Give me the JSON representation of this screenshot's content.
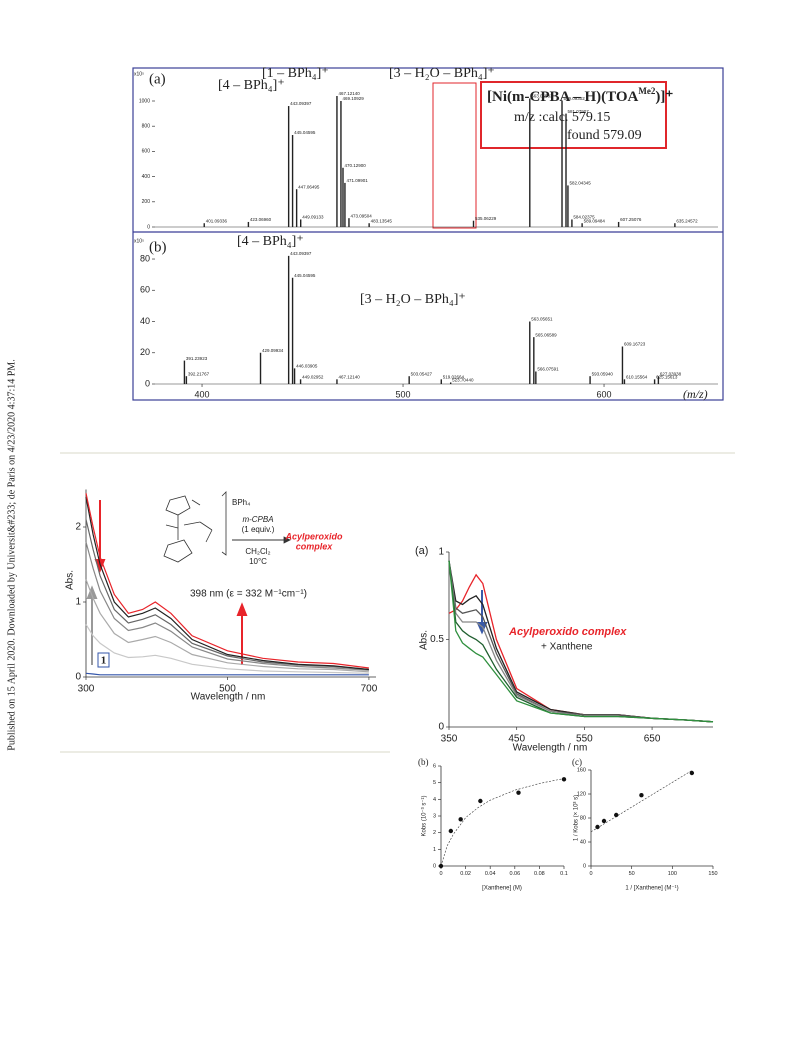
{
  "sidebar": "Published on 15 April 2020. Downloaded by Universit&#233; de Paris on 4/23/2020 4:37:14 PM.",
  "ms": {
    "panel_a": {
      "type": "spectrum",
      "label": "(a)",
      "scale": "x10⁵",
      "xlim": [
        376.6,
        656.7
      ],
      "ylim": [
        0,
        1200
      ],
      "yticks": [
        0,
        200,
        400,
        600,
        800,
        1000
      ],
      "peaks": [
        {
          "mz": 401.09336,
          "intensity": 30,
          "label": "401.09336"
        },
        {
          "mz": 423.0696,
          "intensity": 40,
          "label": "423.06960"
        },
        {
          "mz": 443.09397,
          "intensity": 960,
          "label": "443.09397"
        },
        {
          "mz": 445.04595,
          "intensity": 730,
          "label": "445.04595"
        },
        {
          "mz": 447.06495,
          "intensity": 300,
          "label": "447.06495"
        },
        {
          "mz": 449.09133,
          "intensity": 60,
          "label": "449.09133"
        },
        {
          "mz": 467.1214,
          "intensity": 1040,
          "label": "467.12140"
        },
        {
          "mz": 469.10929,
          "intensity": 1000,
          "label": "469.10929"
        },
        {
          "mz": 470.129,
          "intensity": 470,
          "label": "470.12900"
        },
        {
          "mz": 471.09901,
          "intensity": 350,
          "label": "471.09901"
        },
        {
          "mz": 473.09504,
          "intensity": 70,
          "label": "473.09504"
        },
        {
          "mz": 483.13545,
          "intensity": 30,
          "label": "483.13545"
        },
        {
          "mz": 535.06229,
          "intensity": 50,
          "label": "535.06229"
        },
        {
          "mz": 563.06583,
          "intensity": 1020,
          "label": "563.06583"
        },
        {
          "mz": 579.09302,
          "intensity": 1000,
          "label": "579.09302"
        },
        {
          "mz": 581.07907,
          "intensity": 900,
          "label": "581.07907"
        },
        {
          "mz": 582.04345,
          "intensity": 330,
          "label": "582.04345"
        },
        {
          "mz": 584.02375,
          "intensity": 60,
          "label": "584.02375"
        },
        {
          "mz": 589.09484,
          "intensity": 30,
          "label": "589.09484"
        },
        {
          "mz": 607.25076,
          "intensity": 40,
          "label": "607.25076"
        },
        {
          "mz": 635.24572,
          "intensity": 30,
          "label": "635.24572"
        }
      ],
      "annotations": [
        "[4 – BPh₄]⁺",
        "[1 – BPh₄]⁺",
        "[3 – H₂O – BPh₄]⁺"
      ],
      "box": {
        "formula": "[Ni(m-CPBA – H)(TOA",
        "formula_sup": "Me2",
        "formula_end": ")]⁺",
        "calc": "m/z :calc.   579.15",
        "found": "found 579.09"
      }
    },
    "panel_b": {
      "type": "spectrum",
      "label": "(b)",
      "scale": "x10⁵",
      "xlim": [
        376.6,
        656.7
      ],
      "ylim": [
        0,
        90
      ],
      "xticks": [
        400,
        500,
        600
      ],
      "yticks": [
        0,
        20,
        40,
        60,
        80
      ],
      "xlabel": "(m/z)",
      "peaks": [
        {
          "mz": 391.23923,
          "intensity": 15,
          "label": "391.23923"
        },
        {
          "mz": 392.21767,
          "intensity": 5,
          "label": "392.21767"
        },
        {
          "mz": 429.09934,
          "intensity": 20,
          "label": "429.09934"
        },
        {
          "mz": 443.09397,
          "intensity": 82,
          "label": "443.09397"
        },
        {
          "mz": 445.04595,
          "intensity": 68,
          "label": "445.04595"
        },
        {
          "mz": 446.03905,
          "intensity": 10,
          "label": "446.03905"
        },
        {
          "mz": 449.02952,
          "intensity": 3,
          "label": "449.02952"
        },
        {
          "mz": 467.1214,
          "intensity": 3,
          "label": "467.12140"
        },
        {
          "mz": 503.05427,
          "intensity": 5,
          "label": "503.05427"
        },
        {
          "mz": 519.02664,
          "intensity": 3,
          "label": "519.02664"
        },
        {
          "mz": 523.7044,
          "intensity": 1,
          "label": "523.70440"
        },
        {
          "mz": 563.05651,
          "intensity": 40,
          "label": "563.05651"
        },
        {
          "mz": 565.06589,
          "intensity": 30,
          "label": "565.06589"
        },
        {
          "mz": 566.07591,
          "intensity": 8,
          "label": "566.07591"
        },
        {
          "mz": 593.0594,
          "intensity": 5,
          "label": "593.05940"
        },
        {
          "mz": 609.16723,
          "intensity": 24,
          "label": "609.16723"
        },
        {
          "mz": 610.15564,
          "intensity": 3,
          "label": "610.15564"
        },
        {
          "mz": 625.15613,
          "intensity": 3,
          "label": "625.15613"
        },
        {
          "mz": 627.03938,
          "intensity": 5,
          "label": "627.03938"
        }
      ],
      "annotations": [
        "[4 – BPh₄]⁺",
        "[3 – H₂O – BPh₄]⁺"
      ]
    }
  },
  "uv_left": {
    "type": "line",
    "xlabel": "Wavelength / nm",
    "ylabel": "Abs.",
    "xlim": [
      300,
      710
    ],
    "ylim": [
      0,
      2.5
    ],
    "xticks": [
      300,
      500,
      700
    ],
    "yticks": [
      0,
      1,
      2
    ],
    "x": [
      300,
      310,
      320,
      340,
      360,
      380,
      398,
      420,
      450,
      500,
      550,
      600,
      650,
      700
    ],
    "series": [
      {
        "color": "#c8c8c8",
        "values": [
          0.7,
          0.55,
          0.45,
          0.32,
          0.26,
          0.27,
          0.29,
          0.25,
          0.17,
          0.11,
          0.08,
          0.07,
          0.06,
          0.05
        ]
      },
      {
        "color": "#aaaaaa",
        "values": [
          1.3,
          1.05,
          0.85,
          0.58,
          0.46,
          0.5,
          0.54,
          0.46,
          0.3,
          0.19,
          0.14,
          0.11,
          0.1,
          0.07
        ]
      },
      {
        "color": "#888888",
        "values": [
          1.8,
          1.45,
          1.15,
          0.78,
          0.62,
          0.66,
          0.72,
          0.61,
          0.4,
          0.24,
          0.18,
          0.14,
          0.12,
          0.09
        ]
      },
      {
        "color": "#666666",
        "values": [
          2.1,
          1.7,
          1.35,
          0.9,
          0.72,
          0.77,
          0.83,
          0.7,
          0.45,
          0.28,
          0.2,
          0.16,
          0.14,
          0.1
        ]
      },
      {
        "color": "#222222",
        "values": [
          2.4,
          1.9,
          1.5,
          1.0,
          0.8,
          0.85,
          0.92,
          0.78,
          0.5,
          0.3,
          0.22,
          0.17,
          0.15,
          0.1
        ]
      },
      {
        "color": "#e8242a",
        "values": [
          2.45,
          2.0,
          1.6,
          1.1,
          0.85,
          0.9,
          1.0,
          0.85,
          0.55,
          0.35,
          0.25,
          0.2,
          0.18,
          0.12
        ]
      },
      {
        "color": "#3355aa",
        "values": [
          0.05,
          0.04,
          0.03,
          0.03,
          0.03,
          0.03,
          0.03,
          0.03,
          0.03,
          0.03,
          0.03,
          0.03,
          0.03,
          0.03
        ]
      }
    ],
    "annotation": "398 nm (ε = 332 M⁻¹cm⁻¹)",
    "compound": "1",
    "scheme": {
      "counterion": "BPh₄",
      "reagent": "m-CPBA",
      "equiv": "(1 equiv.)",
      "solvent": "CH₂Cl₂",
      "temp": "10°C",
      "product": "Acylperoxido",
      "product2": "complex"
    }
  },
  "uv_right": {
    "type": "line",
    "label": "(a)",
    "xlabel": "Wavelength / nm",
    "ylabel": "Abs.",
    "xlim": [
      350,
      740
    ],
    "ylim": [
      0,
      1
    ],
    "xticks": [
      350,
      450,
      550,
      650
    ],
    "yticks": [
      0,
      0.5,
      1
    ],
    "x": [
      350,
      360,
      370,
      380,
      390,
      400,
      420,
      450,
      500,
      550,
      600,
      650,
      700,
      740
    ],
    "series": [
      {
        "color": "#e8242a",
        "values": [
          0.65,
          0.67,
          0.72,
          0.8,
          0.87,
          0.82,
          0.5,
          0.22,
          0.1,
          0.07,
          0.07,
          0.05,
          0.04,
          0.03
        ]
      },
      {
        "color": "#222222",
        "values": [
          0.95,
          0.72,
          0.7,
          0.73,
          0.75,
          0.7,
          0.45,
          0.2,
          0.1,
          0.07,
          0.07,
          0.05,
          0.04,
          0.03
        ]
      },
      {
        "color": "#555555",
        "values": [
          0.95,
          0.68,
          0.65,
          0.66,
          0.67,
          0.63,
          0.42,
          0.19,
          0.09,
          0.07,
          0.07,
          0.05,
          0.04,
          0.03
        ]
      },
      {
        "color": "#888888",
        "values": [
          0.95,
          0.65,
          0.6,
          0.6,
          0.6,
          0.57,
          0.38,
          0.18,
          0.09,
          0.06,
          0.06,
          0.05,
          0.04,
          0.03
        ]
      },
      {
        "color": "#1f5e2e",
        "values": [
          0.95,
          0.6,
          0.55,
          0.52,
          0.5,
          0.47,
          0.33,
          0.17,
          0.08,
          0.06,
          0.06,
          0.05,
          0.04,
          0.03
        ]
      },
      {
        "color": "#2f8f3e",
        "values": [
          0.95,
          0.55,
          0.48,
          0.45,
          0.42,
          0.4,
          0.3,
          0.15,
          0.08,
          0.06,
          0.06,
          0.05,
          0.04,
          0.03
        ]
      }
    ],
    "annotation": "Acylperoxido complex",
    "annotation2": "+ Xanthene"
  },
  "kinetics_b": {
    "type": "scatter",
    "label": "(b)",
    "xlabel": "[Xanthene] (M)",
    "ylabel": "Kobs (10⁻³ s⁻¹)",
    "xlim": [
      0,
      0.1
    ],
    "ylim": [
      0,
      6
    ],
    "xticks": [
      0,
      0.02,
      0.04,
      0.06,
      0.08,
      0.1
    ],
    "yticks": [
      0,
      1,
      2,
      3,
      4,
      5,
      6
    ],
    "x": [
      0,
      0.008,
      0.016,
      0.032,
      0.063,
      0.1
    ],
    "values": [
      0,
      2.1,
      2.8,
      3.9,
      4.4,
      5.2
    ],
    "fit": {
      "x": [
        0,
        0.005,
        0.01,
        0.02,
        0.03,
        0.04,
        0.06,
        0.08,
        0.1
      ],
      "values": [
        0,
        1.2,
        1.9,
        2.9,
        3.5,
        3.95,
        4.55,
        4.95,
        5.25
      ]
    }
  },
  "kinetics_c": {
    "type": "scatter",
    "label": "(c)",
    "xlabel": "1 / [Xanthene] (M⁻¹)",
    "ylabel": "1 / Kobs (× 10³ s)",
    "xlim": [
      0,
      150
    ],
    "ylim": [
      0,
      160
    ],
    "xticks": [
      0,
      50,
      100,
      150
    ],
    "yticks": [
      0,
      40,
      80,
      120,
      160
    ],
    "x": [
      8,
      16,
      31,
      62,
      124
    ],
    "values": [
      65,
      75,
      85,
      118,
      155
    ],
    "fit": {
      "x": [
        0,
        125
      ],
      "values": [
        57,
        160
      ]
    }
  }
}
